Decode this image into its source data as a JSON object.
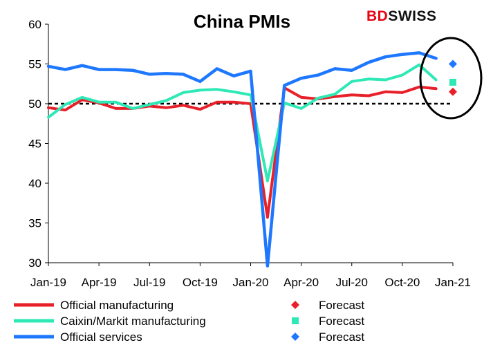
{
  "logo": {
    "part1": "BD",
    "part2": "SWISS"
  },
  "colors": {
    "official_manufacturing": "#e8202a",
    "caixin_manufacturing": "#2ee8b6",
    "official_services": "#1e78ff",
    "reference_line": "#000000"
  },
  "chart_data": {
    "type": "line",
    "title": "China PMIs",
    "xlabel": "",
    "ylabel": "",
    "ylim": [
      30,
      60
    ],
    "yticks": [
      30,
      35,
      40,
      45,
      50,
      55,
      60
    ],
    "xlim": [
      "2019-01",
      "2021-01"
    ],
    "xticks": [
      "Jan-19",
      "Apr-19",
      "Jul-19",
      "Oct-19",
      "Jan-20",
      "Apr-20",
      "Jul-20",
      "Oct-20",
      "Jan-21"
    ],
    "x": [
      "2019-01",
      "2019-02",
      "2019-03",
      "2019-04",
      "2019-05",
      "2019-06",
      "2019-07",
      "2019-08",
      "2019-09",
      "2019-10",
      "2019-11",
      "2019-12",
      "2020-01",
      "2020-02",
      "2020-03",
      "2020-04",
      "2020-05",
      "2020-06",
      "2020-07",
      "2020-08",
      "2020-09",
      "2020-10",
      "2020-11",
      "2020-12"
    ],
    "reference_line": 50,
    "series": [
      {
        "name": "Official manufacturing",
        "key": "official_manufacturing",
        "values": [
          49.5,
          49.2,
          50.5,
          50.1,
          49.4,
          49.4,
          49.7,
          49.5,
          49.8,
          49.3,
          50.2,
          50.2,
          50.0,
          35.7,
          52.0,
          50.8,
          50.6,
          50.9,
          51.1,
          51.0,
          51.5,
          51.4,
          52.1,
          51.9
        ]
      },
      {
        "name": "Caixin/Markit manufacturing",
        "key": "caixin_manufacturing",
        "values": [
          48.3,
          49.9,
          50.8,
          50.2,
          50.2,
          49.4,
          49.9,
          50.4,
          51.4,
          51.7,
          51.8,
          51.5,
          51.1,
          40.3,
          50.1,
          49.4,
          50.7,
          51.2,
          52.8,
          53.1,
          53.0,
          53.6,
          54.9,
          53.0
        ]
      },
      {
        "name": "Official services",
        "key": "official_services",
        "values": [
          54.7,
          54.3,
          54.8,
          54.3,
          54.3,
          54.2,
          53.7,
          53.8,
          53.7,
          52.8,
          54.4,
          53.5,
          54.1,
          29.6,
          52.3,
          53.2,
          53.6,
          54.4,
          54.2,
          55.2,
          55.9,
          56.2,
          56.4,
          55.7
        ]
      }
    ],
    "forecasts": [
      {
        "name": "Forecast",
        "key": "official_manufacturing",
        "marker": "diamond",
        "x": "2021-01",
        "value": 51.5
      },
      {
        "name": "Forecast",
        "key": "caixin_manufacturing",
        "marker": "square",
        "x": "2021-01",
        "value": 52.7
      },
      {
        "name": "Forecast",
        "key": "official_services",
        "marker": "diamond",
        "x": "2021-01",
        "value": 55.0
      }
    ],
    "annotations": [
      "ellipse around latest values and forecasts"
    ],
    "grid": false,
    "legend_position": "bottom"
  }
}
